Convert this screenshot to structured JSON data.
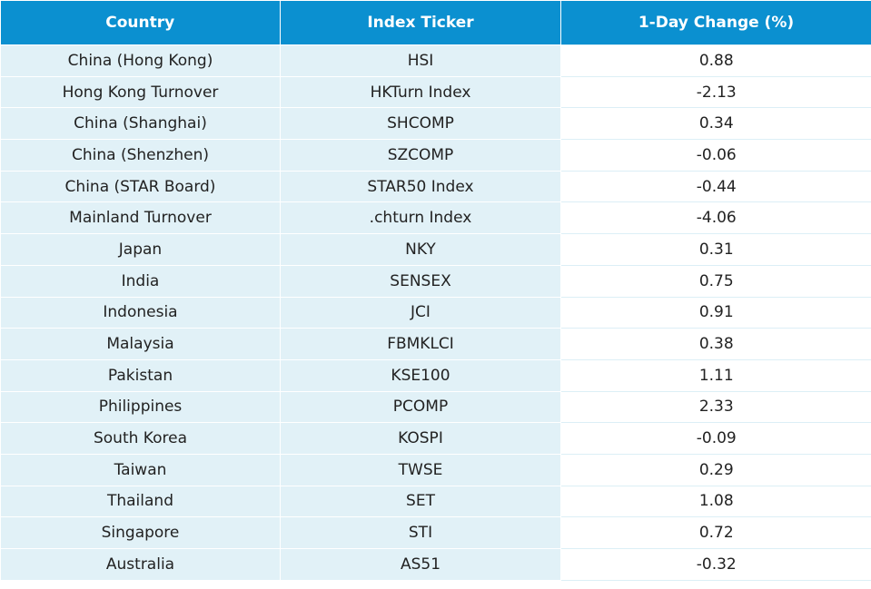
{
  "table": {
    "header": [
      "Country",
      "Index Ticker",
      "1-Day Change (%)"
    ],
    "rows": [
      [
        "China (Hong Kong)",
        "HSI",
        "0.88"
      ],
      [
        "Hong Kong Turnover",
        "HKTurn Index",
        "-2.13"
      ],
      [
        "China (Shanghai)",
        "SHCOMP",
        "0.34"
      ],
      [
        "China (Shenzhen)",
        "SZCOMP",
        "-0.06"
      ],
      [
        "China (STAR Board)",
        "STAR50 Index",
        "-0.44"
      ],
      [
        "Mainland Turnover",
        ".chturn Index",
        "-4.06"
      ],
      [
        "Japan",
        "NKY",
        "0.31"
      ],
      [
        "India",
        "SENSEX",
        "0.75"
      ],
      [
        "Indonesia",
        "JCI",
        "0.91"
      ],
      [
        "Malaysia",
        "FBMKLCI",
        "0.38"
      ],
      [
        "Pakistan",
        "KSE100",
        "1.11"
      ],
      [
        "Philippines",
        "PCOMP",
        "2.33"
      ],
      [
        "South Korea",
        "KOSPI",
        "-0.09"
      ],
      [
        "Taiwan",
        "TWSE",
        "0.29"
      ],
      [
        "Thailand",
        "SET",
        "1.08"
      ],
      [
        "Singapore",
        "STI",
        "0.72"
      ],
      [
        "Australia",
        "AS51",
        "-0.32"
      ]
    ]
  }
}
